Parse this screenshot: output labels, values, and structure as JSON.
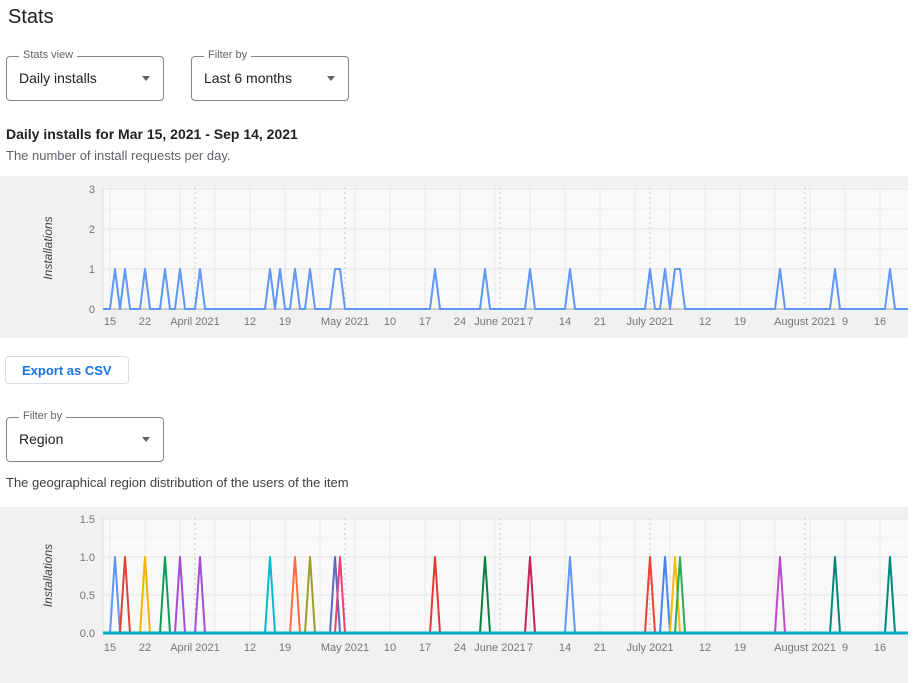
{
  "page": {
    "title": "Stats"
  },
  "controls": {
    "stats_view": {
      "label": "Stats view",
      "value": "Daily installs"
    },
    "time_filter": {
      "label": "Filter by",
      "value": "Last 6 months"
    },
    "region_filter": {
      "label": "Filter by",
      "value": "Region"
    }
  },
  "daily_section": {
    "heading": "Daily installs for Mar 15, 2021 - Sep 14, 2021",
    "description": "The number of install requests per day.",
    "export_button_label": "Export as CSV"
  },
  "region_section": {
    "description": "The geographical region distribution of the users of the item"
  },
  "chart_data": [
    {
      "type": "line",
      "name": "daily-installs",
      "ylabel": "Installations",
      "ylim": [
        0,
        3
      ],
      "y_ticks": [
        "0",
        "1",
        "2",
        "3"
      ],
      "x_start_date": "Mar 15, 2021",
      "x_end_visible_day": 160,
      "x_ticks": [
        {
          "label": "15",
          "day": 0
        },
        {
          "label": "22",
          "day": 7
        },
        {
          "label": "April 2021",
          "day": 17
        },
        {
          "label": "12",
          "day": 28
        },
        {
          "label": "19",
          "day": 35
        },
        {
          "label": "May 2021",
          "day": 47
        },
        {
          "label": "10",
          "day": 56
        },
        {
          "label": "17",
          "day": 63
        },
        {
          "label": "24",
          "day": 70
        },
        {
          "label": "June 2021",
          "day": 78
        },
        {
          "label": "7",
          "day": 84
        },
        {
          "label": "14",
          "day": 91
        },
        {
          "label": "21",
          "day": 98
        },
        {
          "label": "July 2021",
          "day": 108
        },
        {
          "label": "12",
          "day": 119
        },
        {
          "label": "19",
          "day": 126
        },
        {
          "label": "August 2021",
          "day": 139
        },
        {
          "label": "9",
          "day": 147
        },
        {
          "label": "16",
          "day": 154
        }
      ],
      "month_start_days": [
        17,
        47,
        78,
        108,
        139
      ],
      "line_color": "#5e97f6",
      "spikes": [
        {
          "day": 1,
          "date": "Mar 16",
          "value": 1
        },
        {
          "day": 3,
          "date": "Mar 18",
          "value": 1
        },
        {
          "day": 7,
          "date": "Mar 22",
          "value": 1
        },
        {
          "day": 11,
          "date": "Mar 26",
          "value": 1
        },
        {
          "day": 14,
          "date": "Mar 29",
          "value": 1
        },
        {
          "day": 18,
          "date": "Apr 2",
          "value": 1
        },
        {
          "day": 32,
          "date": "Apr 16",
          "value": 1
        },
        {
          "day": 34,
          "date": "Apr 18",
          "value": 1
        },
        {
          "day": 37,
          "date": "Apr 21",
          "value": 1
        },
        {
          "day": 40,
          "date": "Apr 24",
          "value": 1
        },
        {
          "day": 45,
          "date": "Apr 29",
          "value": 1
        },
        {
          "day": 46,
          "date": "Apr 30",
          "value": 1
        },
        {
          "day": 65,
          "date": "May 19",
          "value": 1
        },
        {
          "day": 75,
          "date": "May 29",
          "value": 1
        },
        {
          "day": 84,
          "date": "Jun 7",
          "value": 1
        },
        {
          "day": 92,
          "date": "Jun 15",
          "value": 1
        },
        {
          "day": 108,
          "date": "Jul 1",
          "value": 1
        },
        {
          "day": 111,
          "date": "Jul 4",
          "value": 1
        },
        {
          "day": 113,
          "date": "Jul 6",
          "value": 1
        },
        {
          "day": 114,
          "date": "Jul 7",
          "value": 1
        },
        {
          "day": 134,
          "date": "Jul 27",
          "value": 1
        },
        {
          "day": 145,
          "date": "Aug 7",
          "value": 1
        },
        {
          "day": 156,
          "date": "Aug 18",
          "value": 1
        }
      ]
    },
    {
      "type": "line",
      "name": "region-distribution",
      "ylabel": "Installations",
      "ylim": [
        0,
        1.5
      ],
      "y_ticks": [
        "0.0",
        "0.5",
        "1.0",
        "1.5"
      ],
      "x_start_date": "Mar 15, 2021",
      "x_end_visible_day": 160,
      "x_ticks": [
        {
          "label": "15",
          "day": 0
        },
        {
          "label": "22",
          "day": 7
        },
        {
          "label": "April 2021",
          "day": 17
        },
        {
          "label": "12",
          "day": 28
        },
        {
          "label": "19",
          "day": 35
        },
        {
          "label": "May 2021",
          "day": 47
        },
        {
          "label": "10",
          "day": 56
        },
        {
          "label": "17",
          "day": 63
        },
        {
          "label": "24",
          "day": 70
        },
        {
          "label": "June 2021",
          "day": 78
        },
        {
          "label": "7",
          "day": 84
        },
        {
          "label": "14",
          "day": 91
        },
        {
          "label": "21",
          "day": 98
        },
        {
          "label": "July 2021",
          "day": 108
        },
        {
          "label": "12",
          "day": 119
        },
        {
          "label": "19",
          "day": 126
        },
        {
          "label": "August 2021",
          "day": 139
        },
        {
          "label": "9",
          "day": 147
        },
        {
          "label": "16",
          "day": 154
        }
      ],
      "month_start_days": [
        17,
        47,
        78,
        108,
        139
      ],
      "baseline_color": "#00acc1",
      "series": [
        {
          "color": "#5e97f6",
          "spikes": [
            {
              "day": 1,
              "date": "Mar 16",
              "value": 1
            }
          ]
        },
        {
          "color": "#db4437",
          "spikes": [
            {
              "day": 3,
              "date": "Mar 18",
              "value": 1
            }
          ]
        },
        {
          "color": "#f4b400",
          "spikes": [
            {
              "day": 7,
              "date": "Mar 22",
              "value": 1
            }
          ]
        },
        {
          "color": "#0f9d58",
          "spikes": [
            {
              "day": 11,
              "date": "Mar 26",
              "value": 1
            }
          ]
        },
        {
          "color": "#a64dd6",
          "spikes": [
            {
              "day": 14,
              "date": "Mar 29",
              "value": 1
            }
          ]
        },
        {
          "color": "#a64dd6",
          "spikes": [
            {
              "day": 18,
              "date": "Apr 2",
              "value": 1
            }
          ]
        },
        {
          "color": "#00bcd4",
          "spikes": [
            {
              "day": 32,
              "date": "Apr 16",
              "value": 1
            }
          ]
        },
        {
          "color": "#ff6c40",
          "spikes": [
            {
              "day": 37,
              "date": "Apr 21",
              "value": 1
            }
          ]
        },
        {
          "color": "#9e9d24",
          "spikes": [
            {
              "day": 40,
              "date": "Apr 24",
              "value": 1
            }
          ]
        },
        {
          "color": "#5c6bc0",
          "spikes": [
            {
              "day": 45,
              "date": "Apr 29",
              "value": 1
            }
          ]
        },
        {
          "color": "#ec407a",
          "spikes": [
            {
              "day": 46,
              "date": "Apr 30",
              "value": 1
            }
          ]
        },
        {
          "color": "#e53935",
          "spikes": [
            {
              "day": 65,
              "date": "May 19",
              "value": 1
            }
          ]
        },
        {
          "color": "#0b8043",
          "spikes": [
            {
              "day": 75,
              "date": "May 29",
              "value": 1
            }
          ]
        },
        {
          "color": "#c2255c",
          "spikes": [
            {
              "day": 84,
              "date": "Jun 7",
              "value": 1
            }
          ]
        },
        {
          "color": "#5e97f6",
          "spikes": [
            {
              "day": 92,
              "date": "Jun 15",
              "value": 1
            }
          ]
        },
        {
          "color": "#ea4335",
          "spikes": [
            {
              "day": 108,
              "date": "Jul 1",
              "value": 1
            }
          ]
        },
        {
          "color": "#4285f4",
          "spikes": [
            {
              "day": 111,
              "date": "Jul 4",
              "value": 1
            }
          ]
        },
        {
          "color": "#fbbc04",
          "spikes": [
            {
              "day": 113,
              "date": "Jul 6",
              "value": 1
            }
          ]
        },
        {
          "color": "#34a853",
          "spikes": [
            {
              "day": 114,
              "date": "Jul 7",
              "value": 1
            }
          ]
        },
        {
          "color": "#bf4bcc",
          "spikes": [
            {
              "day": 134,
              "date": "Jul 27",
              "value": 1
            }
          ]
        },
        {
          "color": "#00897b",
          "spikes": [
            {
              "day": 145,
              "date": "Aug 7",
              "value": 1
            },
            {
              "day": 156,
              "date": "Aug 18",
              "value": 1
            }
          ]
        }
      ]
    }
  ]
}
